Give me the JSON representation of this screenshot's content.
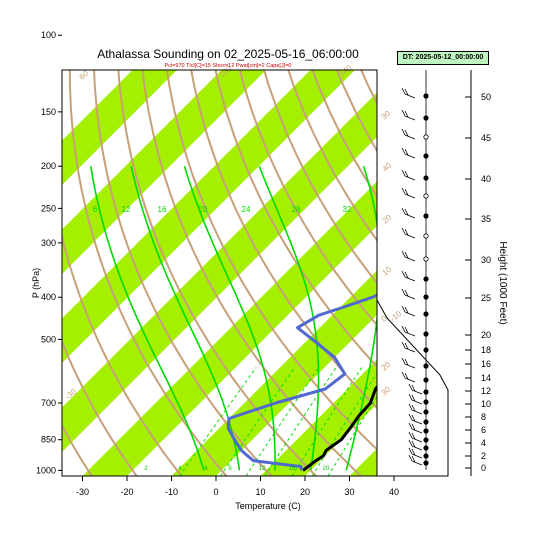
{
  "title": "Athalassa Sounding on 02_2025-05-16_06:00:00",
  "subtitle": "Pcl=970 Tlcl[C]=15 Shox=12 Pwat[cm]=2 Cape[J]=0",
  "datetime_label": "DT: 2025-05-12_00:00:00",
  "colors": {
    "temperature": "#000000",
    "dewpoint": "#5069d2",
    "isotherm_band": "#a5f000",
    "dry_adiabat": "#c8a078",
    "moist_adiabat": "#00dc00",
    "mixing_ratio": "#00e000",
    "axis_label": "#c8a078"
  },
  "chart_data": {
    "type": "line",
    "title": "Athalassa Sounding on 02_2025-05-16_06:00:00",
    "subtitle": "Pcl=970 Tlcl[C]=15 Shox=12 Pwat[cm]=2 Cape[J]=0",
    "xlabel": "Temperature (C)",
    "ylabel": "P (hPa)",
    "y2label": "Height (1000 Feet)",
    "xlim": [
      -33,
      48
    ],
    "ylim": [
      1030,
      100
    ],
    "y_scale": "log",
    "x_ticks": [
      -30,
      -20,
      -10,
      0,
      10,
      20,
      30,
      40
    ],
    "y_ticks": [
      1000,
      850,
      700,
      500,
      400,
      300,
      250,
      200,
      150,
      100
    ],
    "height_ticks": [
      0,
      2,
      4,
      6,
      8,
      10,
      12,
      14,
      16,
      18,
      20,
      25,
      30,
      35,
      40,
      45,
      50
    ],
    "mixing_ratio_labels": [
      "3",
      "6",
      "12",
      "16",
      "20",
      "24",
      "28",
      "32"
    ],
    "mixing_ratio_bottom_labels": [
      "2",
      "4",
      "6",
      "8",
      "12",
      "16",
      "20"
    ],
    "dry_adiabat_labels": [
      "60",
      "100",
      "140",
      "30",
      "40",
      "20",
      "10",
      "0",
      "-10",
      "20",
      "30",
      "-30"
    ],
    "series": [
      {
        "name": "Temperature",
        "points": [
          [
            1000,
            18.3
          ],
          [
            950,
            19.0
          ],
          [
            925,
            19.6
          ],
          [
            900,
            19.0
          ],
          [
            850,
            20.0
          ],
          [
            800,
            19.4
          ],
          [
            750,
            18.6
          ],
          [
            700,
            18.3
          ],
          [
            650,
            16.3
          ],
          [
            600,
            15.6
          ],
          [
            550,
            13.0
          ],
          [
            500,
            11.0
          ],
          [
            450,
            8.5
          ],
          [
            400,
            6.0
          ],
          [
            350,
            3.0
          ],
          [
            300,
            0.5
          ],
          [
            250,
            -0.8
          ],
          [
            200,
            -1.1
          ],
          [
            175,
            -1.0
          ],
          [
            160,
            0.0
          ],
          [
            150,
            1.5
          ],
          [
            130,
            7.0
          ],
          [
            115,
            13.0
          ],
          [
            100,
            19.0
          ]
        ]
      },
      {
        "name": "Dewpoint",
        "points": [
          [
            1000,
            18.0
          ],
          [
            980,
            17.0
          ],
          [
            950,
            5.0
          ],
          [
            925,
            2.5
          ],
          [
            900,
            0.0
          ],
          [
            850,
            -4.0
          ],
          [
            800,
            -8.0
          ],
          [
            760,
            -10.0
          ],
          [
            700,
            -3.0
          ],
          [
            650,
            5.0
          ],
          [
            600,
            6.0
          ],
          [
            550,
            0.0
          ],
          [
            500,
            -9.0
          ],
          [
            470,
            -15.0
          ],
          [
            440,
            -13.0
          ],
          [
            420,
            -9.0
          ],
          [
            400,
            -5.0
          ],
          [
            370,
            -1.0
          ],
          [
            340,
            -1.0
          ],
          [
            310,
            -3.0
          ],
          [
            280,
            -8.0
          ],
          [
            250,
            -12.0
          ],
          [
            220,
            -15.0
          ],
          [
            200,
            -15.8
          ],
          [
            180,
            -16.3
          ],
          [
            160,
            -17.0
          ],
          [
            150,
            -16.5
          ],
          [
            140,
            -14.0
          ],
          [
            120,
            -10.0
          ],
          [
            100,
            -4.0
          ]
        ]
      }
    ]
  }
}
